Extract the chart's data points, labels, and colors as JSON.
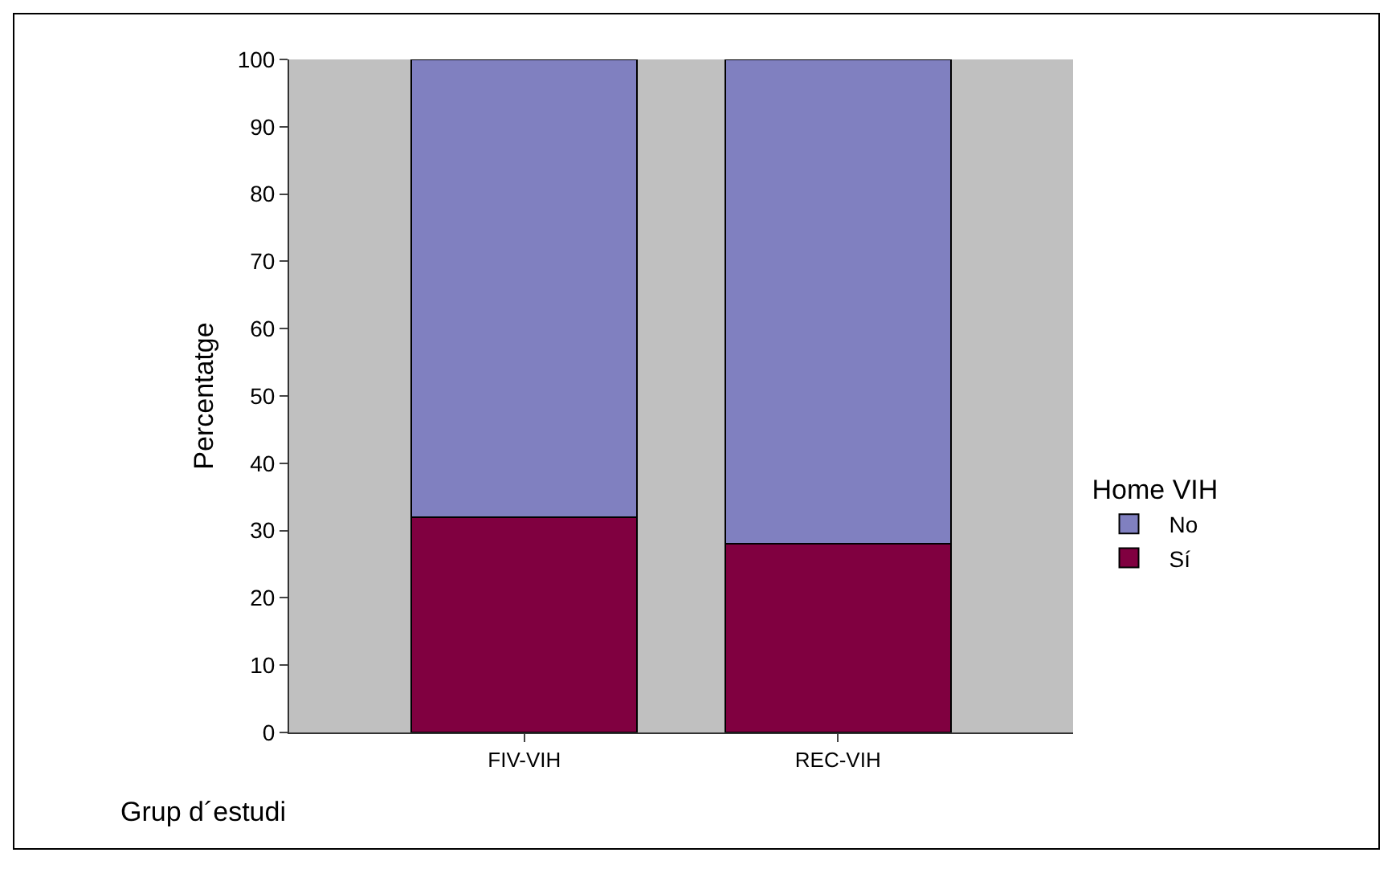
{
  "chart_data": {
    "type": "bar",
    "stacked": true,
    "xlabel": "Grup d´estudi",
    "ylabel": "Percentatge",
    "legend_title": "Home VIH",
    "legend": "right",
    "categories": [
      "FIV-VIH",
      "REC-VIH"
    ],
    "series": [
      {
        "name": "Sí",
        "color": "#800040",
        "values": [
          32,
          28
        ]
      },
      {
        "name": "No",
        "color": "#8080c0",
        "values": [
          68,
          72
        ]
      }
    ],
    "ylim": [
      0,
      100
    ],
    "yticks": [
      0,
      10,
      20,
      30,
      40,
      50,
      60,
      70,
      80,
      90,
      100
    ],
    "grid": false
  }
}
